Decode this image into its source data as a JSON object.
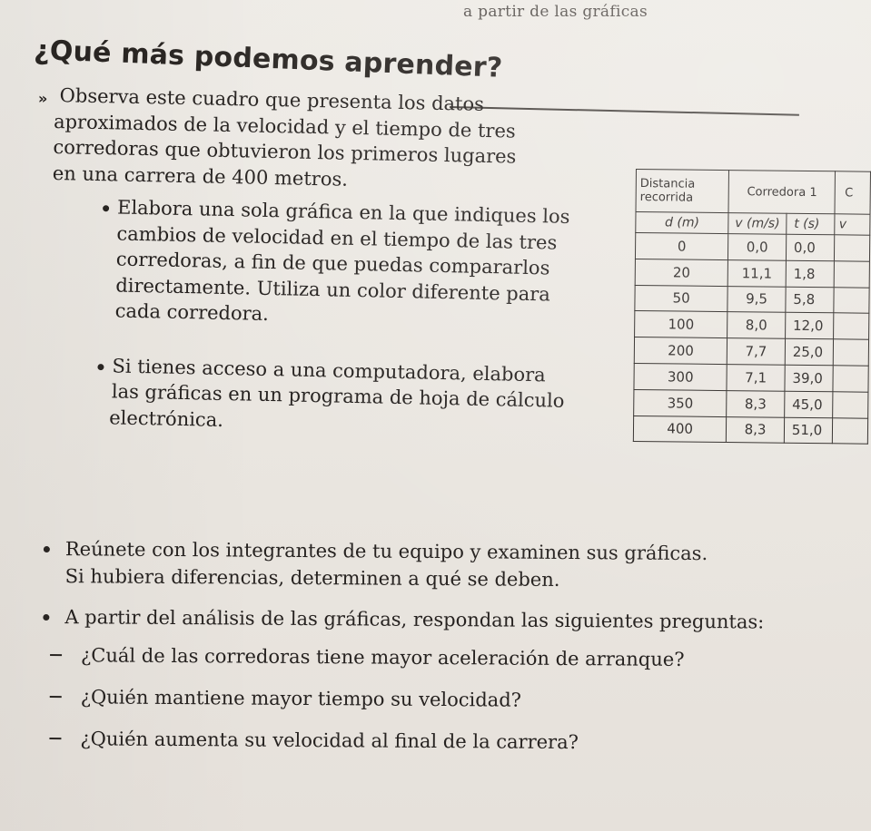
{
  "header": {
    "running_head": "a partir de las gráficas",
    "title": "¿Qué más podemos aprender?"
  },
  "intro": {
    "marker": "»",
    "lines": [
      "Observa este cuadro que presenta los datos",
      "aproximados de la velocidad y el tiempo de tres",
      "corredoras que obtuvieron los primeros lugares",
      "en una carrera de 400 metros."
    ]
  },
  "bullet1": {
    "lines": [
      "Elabora una sola gráfica en la que indiques los",
      "cambios de velocidad en el tiempo de las tres",
      "corredoras, a fin de que puedas compararlos",
      "directamente. Utiliza un color diferente para",
      "cada corredora."
    ]
  },
  "bullet2": {
    "lines": [
      "Si tienes acceso a una computadora, elabora",
      "las gráficas en un programa de hoja de cálculo",
      "electrónica."
    ]
  },
  "table": {
    "header_distance_line1": "Distancia",
    "header_distance_line2": "recorrida",
    "header_runner1": "Corredora 1",
    "header_runner2_partial": "C",
    "unit_d": "d (m)",
    "unit_v": "v (m/s)",
    "unit_t": "t (s)",
    "unit_v2_partial": "v",
    "rows": [
      {
        "d": "0",
        "v": "0,0",
        "t": "0,0"
      },
      {
        "d": "20",
        "v": "11,1",
        "t": "1,8"
      },
      {
        "d": "50",
        "v": "9,5",
        "t": "5,8"
      },
      {
        "d": "100",
        "v": "8,0",
        "t": "12,0"
      },
      {
        "d": "200",
        "v": "7,7",
        "t": "25,0"
      },
      {
        "d": "300",
        "v": "7,1",
        "t": "39,0"
      },
      {
        "d": "350",
        "v": "8,3",
        "t": "45,0"
      },
      {
        "d": "400",
        "v": "8,3",
        "t": "51,0"
      }
    ]
  },
  "bullet3": {
    "lines": [
      "Reúnete con los integrantes de tu equipo y examinen sus gráficas.",
      "Si hubiera diferencias, determinen a qué se deben."
    ]
  },
  "bullet4": {
    "line": "A partir del análisis de las gráficas, respondan las siguientes preguntas:"
  },
  "questions": [
    "¿Cuál de las corredoras tiene mayor aceleración de arranque?",
    "¿Quién mantiene mayor tiempo su velocidad?",
    "¿Quién aumenta su velocidad al final de la carrera?"
  ]
}
